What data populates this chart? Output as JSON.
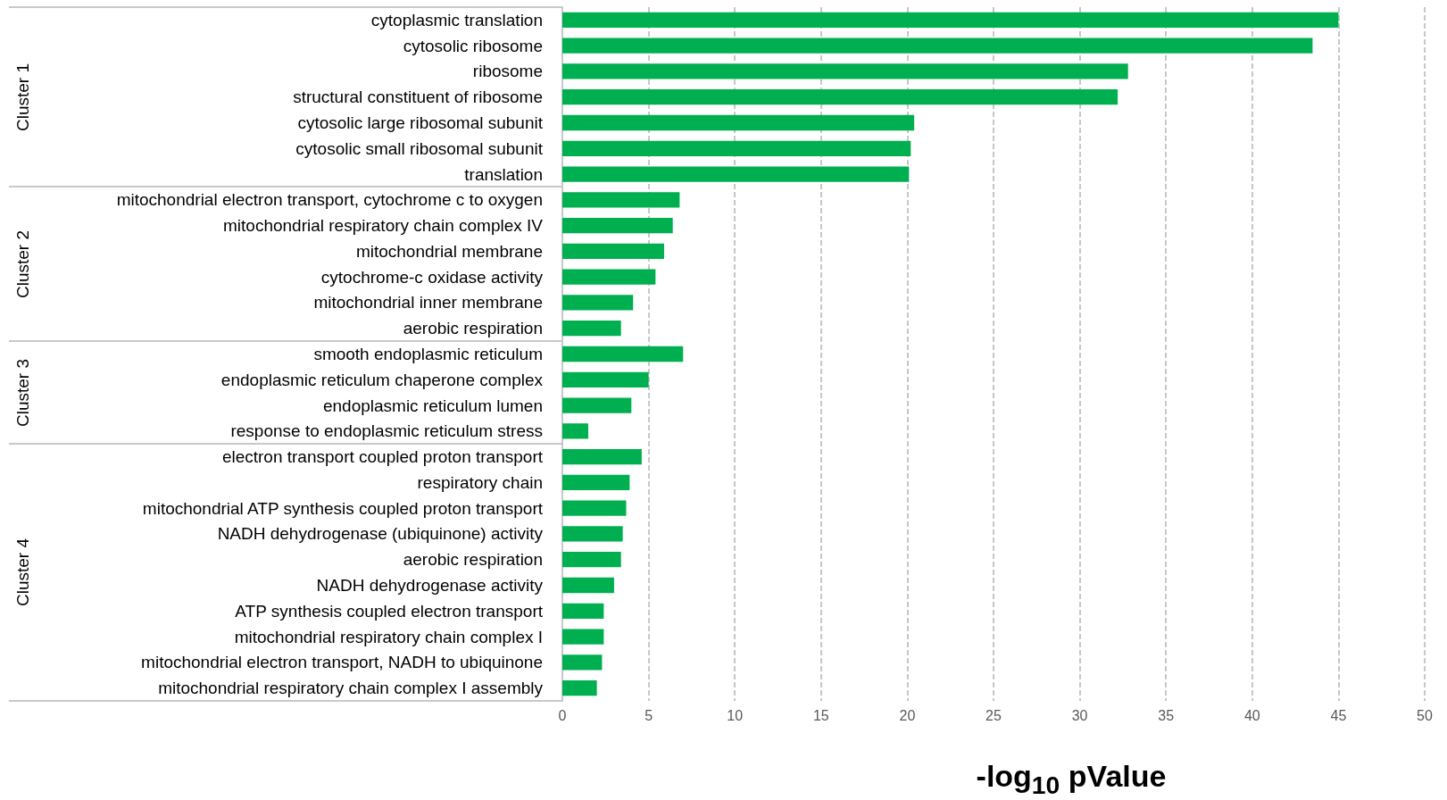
{
  "chart_data": {
    "type": "bar",
    "orientation": "horizontal",
    "xlabel": "-log$_{10}$ pValue",
    "categories": [
      "cytoplasmic translation",
      "cytosolic ribosome",
      "ribosome",
      "structural constituent of ribosome",
      "cytosolic large ribosomal subunit",
      "cytosolic small ribosomal subunit",
      "translation",
      "mitochondrial electron transport, cytochrome c to oxygen",
      "mitochondrial respiratory chain complex IV",
      "mitochondrial membrane",
      "cytochrome-c oxidase activity",
      "mitochondrial inner membrane",
      "aerobic respiration",
      "smooth endoplasmic reticulum",
      "endoplasmic reticulum chaperone complex",
      "endoplasmic reticulum lumen",
      "response to endoplasmic reticulum stress",
      "electron transport coupled proton transport",
      "respiratory chain",
      "mitochondrial ATP synthesis coupled proton transport",
      "NADH dehydrogenase (ubiquinone) activity",
      "aerobic respiration",
      "NADH dehydrogenase activity",
      "ATP synthesis coupled electron transport",
      "mitochondrial respiratory chain complex I",
      "mitochondrial electron transport, NADH to ubiquinone",
      "mitochondrial respiratory chain complex I assembly"
    ],
    "values": [
      45.0,
      43.5,
      32.8,
      32.2,
      20.4,
      20.2,
      20.1,
      6.8,
      6.4,
      5.9,
      5.4,
      4.1,
      3.4,
      7.0,
      5.0,
      4.0,
      1.5,
      4.6,
      3.9,
      3.7,
      3.5,
      3.4,
      3.0,
      2.4,
      2.4,
      2.3,
      2.0
    ],
    "color": "#00b050",
    "xlim": [
      0,
      50
    ],
    "xticks": [
      0,
      5,
      10,
      15,
      20,
      25,
      30,
      35,
      40,
      45,
      50
    ],
    "grid": "x",
    "annotations": [
      "Cluster 1",
      "Cluster 2",
      "Cluster 3",
      "Cluster 4"
    ]
  }
}
